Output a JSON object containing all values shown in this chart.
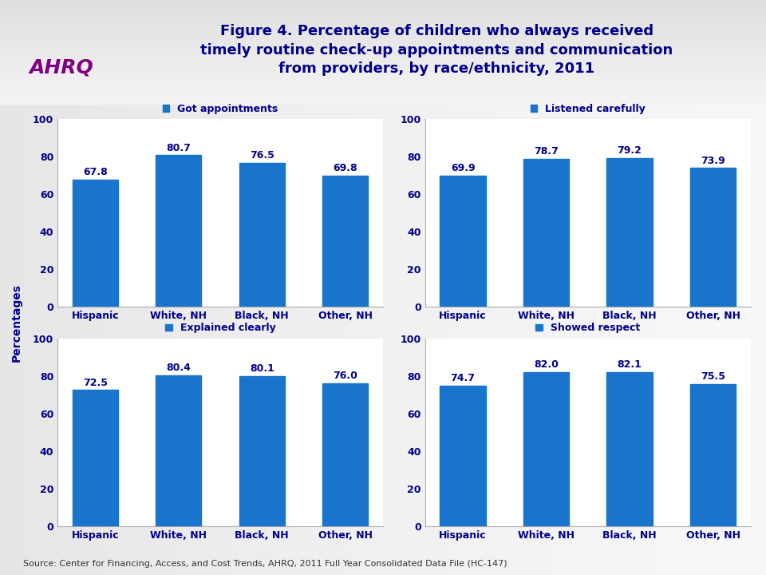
{
  "title_line1": "Figure 4. Percentage of children who always received",
  "title_line2": "timely routine check-up appointments and communication",
  "title_line3": "from providers, by race/ethnicity, 2011",
  "title_color": "#00008B",
  "title_fontsize": 13,
  "ylabel": "Percentages",
  "ylabel_color": "#00008B",
  "ylabel_fontsize": 10,
  "categories": [
    "Hispanic",
    "White, NH",
    "Black, NH",
    "Other, NH"
  ],
  "charts": [
    {
      "title": "Got appointments",
      "values": [
        67.8,
        80.7,
        76.5,
        69.8
      ]
    },
    {
      "title": "Listened carefully",
      "values": [
        69.9,
        78.7,
        79.2,
        73.9
      ]
    },
    {
      "title": "Explained clearly",
      "values": [
        72.5,
        80.4,
        80.1,
        76.0
      ]
    },
    {
      "title": "Showed respect",
      "values": [
        74.7,
        82.0,
        82.1,
        75.5
      ]
    }
  ],
  "bar_color": "#1874CD",
  "value_color": "#00008B",
  "value_fontsize": 9,
  "tick_color": "#00008B",
  "tick_fontsize": 9,
  "legend_color": "#00008B",
  "legend_fontsize": 9,
  "source_text": "Source: Center for Financing, Access, and Cost Trends, AHRQ, 2011 Full Year Consolidated Data File (HC-147)",
  "source_fontsize": 8,
  "source_color": "#333333",
  "bg_light": "#F0F0F0",
  "bg_dark": "#C8C8C8",
  "header_line_color": "#A0A0A0",
  "ylim": [
    0,
    100
  ],
  "yticks": [
    0,
    20,
    40,
    60,
    80,
    100
  ]
}
